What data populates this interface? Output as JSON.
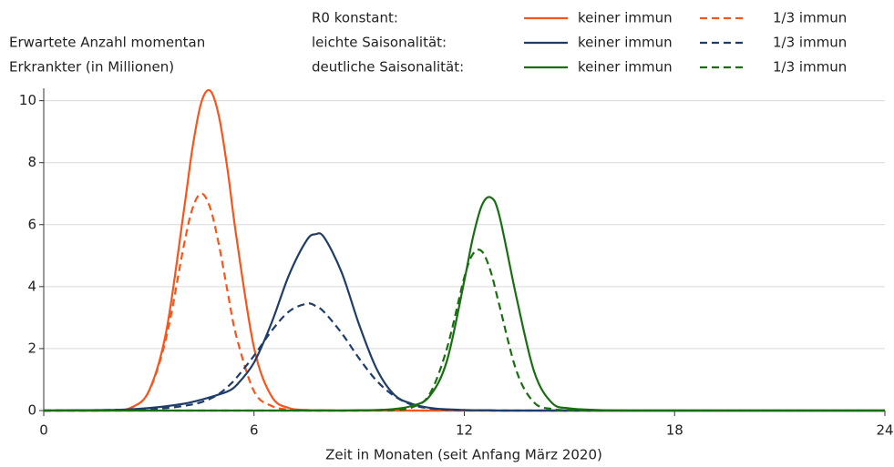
{
  "chart_data": {
    "type": "line",
    "ylabel": [
      "Erwartete Anzahl momentan",
      "Erkrankter (in Millionen)"
    ],
    "xlabel": "Zeit in Monaten (seit Anfang März 2020)",
    "legend_rows": [
      "R0 konstant:",
      "leichte Saisonalität:",
      "deutliche Saisonalität:"
    ],
    "xlim": [
      0,
      24
    ],
    "xticks": [
      0,
      6,
      12,
      18,
      24
    ],
    "ylim": [
      0,
      10.4
    ],
    "yticks": [
      0,
      2,
      4,
      6,
      8,
      10
    ],
    "grid": true,
    "x": [
      0,
      1,
      2,
      2.5,
      3,
      3.5,
      4,
      4.25,
      4.5,
      4.75,
      5,
      5.25,
      5.5,
      6,
      6.5,
      7,
      7.5,
      7.75,
      8,
      8.5,
      9,
      9.5,
      10,
      10.5,
      11,
      11.5,
      12,
      12.25,
      12.5,
      12.75,
      13,
      13.5,
      14,
      14.5,
      15,
      16,
      17,
      18,
      20,
      22,
      24
    ],
    "series": [
      {
        "name": "keiner immun",
        "color": "#f4561d",
        "linestyle": "solid",
        "values": [
          0,
          0,
          0.01,
          0.1,
          0.63,
          2.58,
          6.47,
          8.52,
          9.96,
          10.32,
          9.49,
          7.73,
          5.58,
          2.03,
          0.46,
          0.08,
          0.02,
          0.01,
          0.01,
          0,
          0,
          0,
          0,
          0,
          0,
          0,
          0,
          0,
          0,
          0,
          0,
          0,
          0,
          0,
          0,
          0,
          0,
          0,
          0,
          0,
          0
        ]
      },
      {
        "name": "1/3 immun",
        "color": "#f4561d",
        "linestyle": "dashed",
        "values": [
          0,
          0,
          0.01,
          0.09,
          0.62,
          2.38,
          5.34,
          6.54,
          7.0,
          6.54,
          5.34,
          3.81,
          2.38,
          0.62,
          0.15,
          0.03,
          0.01,
          0,
          0,
          0,
          0,
          0,
          0,
          0,
          0,
          0,
          0,
          0,
          0,
          0,
          0,
          0,
          0,
          0,
          0,
          0,
          0,
          0,
          0,
          0,
          0
        ]
      },
      {
        "name": "keiner immun",
        "color": "#1f3d6b",
        "linestyle": "solid",
        "values": [
          0,
          0.01,
          0.02,
          0.04,
          0.08,
          0.14,
          0.22,
          0.28,
          0.35,
          0.43,
          0.52,
          0.62,
          0.82,
          1.55,
          2.83,
          4.38,
          5.49,
          5.69,
          5.59,
          4.46,
          2.77,
          1.34,
          0.51,
          0.22,
          0.09,
          0.04,
          0.02,
          0.01,
          0.01,
          0.01,
          0,
          0,
          0,
          0,
          0,
          0,
          0,
          0,
          0,
          0,
          0
        ]
      },
      {
        "name": "1/3 immun",
        "color": "#1f3d6b",
        "linestyle": "dashed",
        "values": [
          0,
          0.01,
          0.02,
          0.03,
          0.05,
          0.08,
          0.15,
          0.2,
          0.27,
          0.38,
          0.54,
          0.77,
          1.06,
          1.77,
          2.57,
          3.2,
          3.45,
          3.38,
          3.18,
          2.5,
          1.68,
          0.96,
          0.47,
          0.19,
          0.07,
          0.03,
          0.01,
          0.01,
          0.01,
          0,
          0,
          0,
          0,
          0,
          0,
          0,
          0,
          0,
          0,
          0,
          0
        ]
      },
      {
        "name": "keiner immun",
        "color": "#1a6e12",
        "linestyle": "solid",
        "values": [
          0,
          0,
          0,
          0,
          0,
          0,
          0,
          0,
          0,
          0,
          0,
          0,
          0,
          0,
          0,
          0,
          0,
          0,
          0,
          0,
          0.01,
          0.02,
          0.05,
          0.15,
          0.45,
          1.59,
          4.19,
          5.61,
          6.62,
          6.88,
          6.29,
          3.59,
          1.23,
          0.25,
          0.07,
          0.01,
          0,
          0,
          0,
          0,
          0
        ]
      },
      {
        "name": "1/3 immun",
        "color": "#1a6e12",
        "linestyle": "dashed",
        "values": [
          0,
          0,
          0,
          0,
          0,
          0,
          0,
          0,
          0,
          0,
          0,
          0,
          0,
          0,
          0,
          0,
          0,
          0,
          0,
          0,
          0,
          0.01,
          0.02,
          0.1,
          0.51,
          1.99,
          4.3,
          5.06,
          5.14,
          4.5,
          3.4,
          1.24,
          0.25,
          0.05,
          0.01,
          0,
          0,
          0,
          0,
          0,
          0
        ]
      }
    ]
  }
}
